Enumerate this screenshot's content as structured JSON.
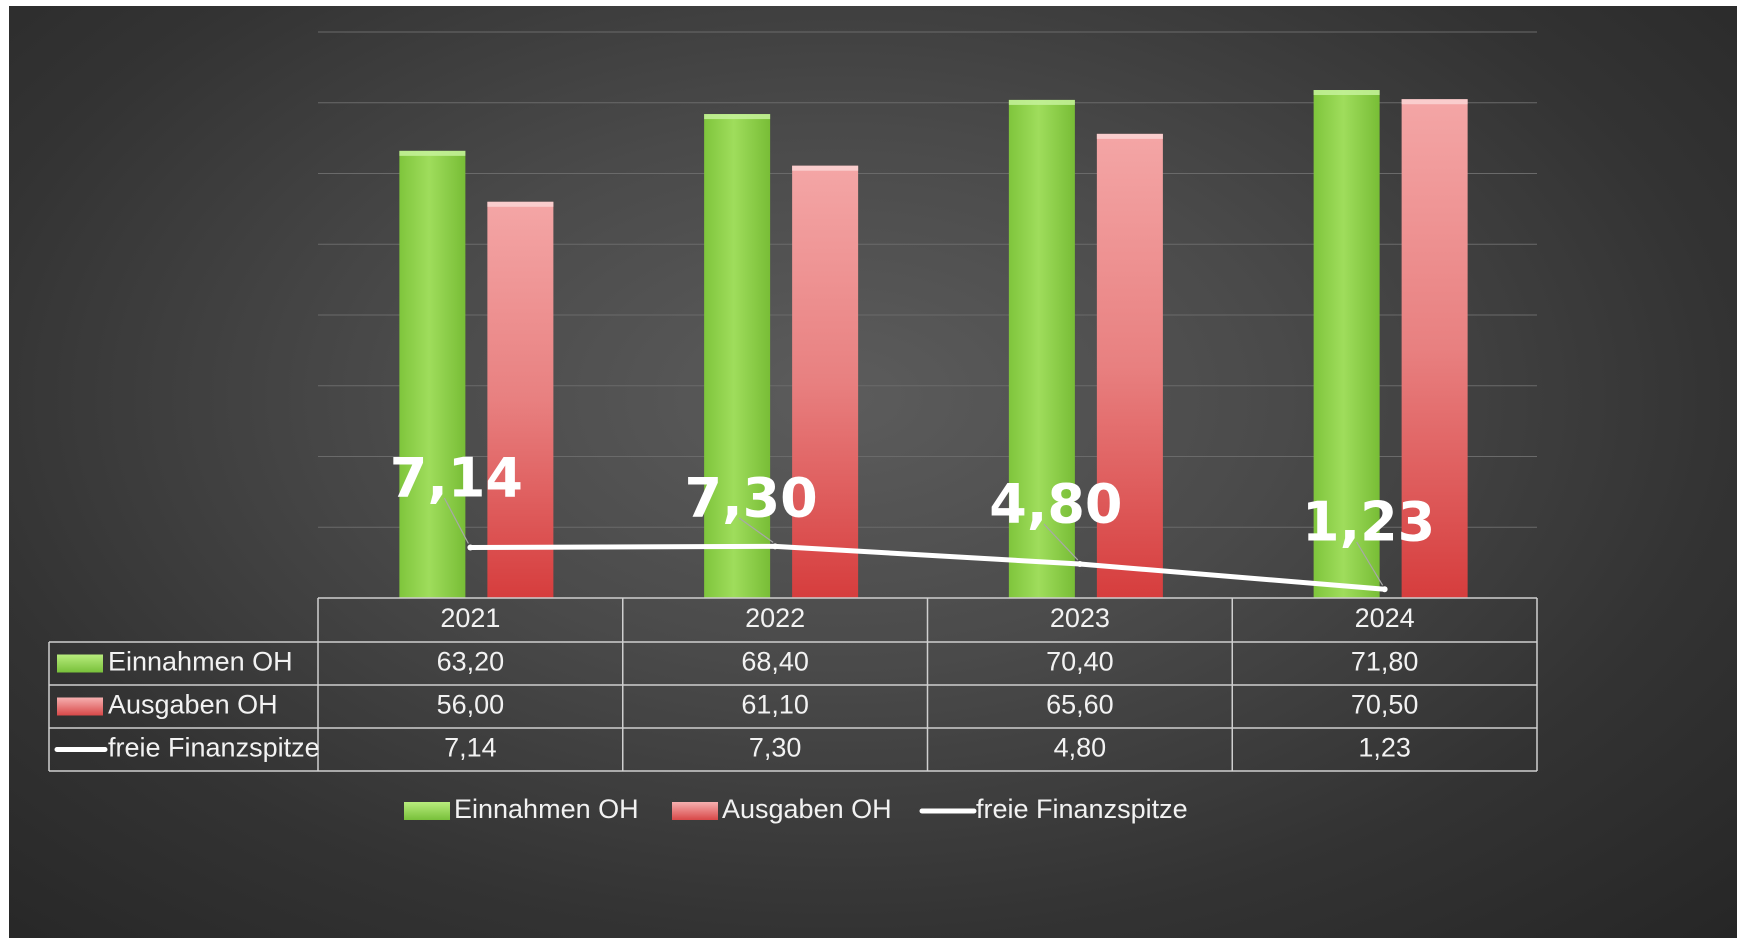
{
  "chart_data": {
    "type": "bar",
    "categories": [
      "2021",
      "2022",
      "2023",
      "2024"
    ],
    "series": [
      {
        "name": "Einnahmen OH",
        "kind": "bar",
        "values": [
          63.2,
          68.4,
          70.4,
          71.8
        ],
        "display": [
          "63,20",
          "68,40",
          "70,40",
          "71,80"
        ],
        "color": "#8ed14a"
      },
      {
        "name": "Ausgaben OH",
        "kind": "bar",
        "values": [
          56.0,
          61.1,
          65.6,
          70.5
        ],
        "display": [
          "56,00",
          "61,10",
          "65,60",
          "70,50"
        ],
        "color": "#e25a5a"
      },
      {
        "name": "freie Finanzspitze",
        "kind": "line",
        "values": [
          7.14,
          7.3,
          4.8,
          1.23
        ],
        "display": [
          "7,14",
          "7,30",
          "4,80",
          "1,23"
        ],
        "color": "#ffffff"
      }
    ],
    "ylim": [
      0,
      80
    ],
    "grid": true,
    "data_table": true,
    "legend_position": "bottom"
  },
  "colors": {
    "einnahmen": "#8ed14a",
    "ausgaben": "#e25a5a",
    "finanzspitze": "#ffffff",
    "background": "#4a4a4a"
  }
}
